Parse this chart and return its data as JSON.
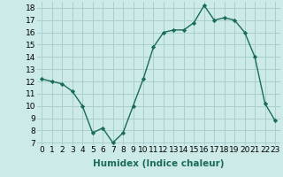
{
  "x": [
    0,
    1,
    2,
    3,
    4,
    5,
    6,
    7,
    8,
    9,
    10,
    11,
    12,
    13,
    14,
    15,
    16,
    17,
    18,
    19,
    20,
    21,
    22,
    23
  ],
  "y": [
    12.2,
    12.0,
    11.8,
    11.2,
    10.0,
    7.8,
    8.2,
    7.0,
    7.8,
    10.0,
    12.2,
    14.8,
    16.0,
    16.2,
    16.2,
    16.8,
    18.2,
    17.0,
    17.2,
    17.0,
    16.0,
    14.0,
    10.2,
    8.8
  ],
  "line_color": "#1a6b5a",
  "marker": "D",
  "marker_size": 2.2,
  "background_color": "#cceae7",
  "grid_color": "#aacfcc",
  "xlabel": "Humidex (Indice chaleur)",
  "xlim": [
    -0.5,
    23.5
  ],
  "ylim": [
    6.8,
    18.5
  ],
  "yticks": [
    7,
    8,
    9,
    10,
    11,
    12,
    13,
    14,
    15,
    16,
    17,
    18
  ],
  "xticks": [
    0,
    1,
    2,
    3,
    4,
    5,
    6,
    7,
    8,
    9,
    10,
    11,
    12,
    13,
    14,
    15,
    16,
    17,
    18,
    19,
    20,
    21,
    22,
    23
  ],
  "xtick_labels": [
    "0",
    "1",
    "2",
    "3",
    "4",
    "5",
    "6",
    "7",
    "8",
    "9",
    "10",
    "11",
    "12",
    "13",
    "14",
    "15",
    "16",
    "17",
    "18",
    "19",
    "20",
    "21",
    "22",
    "23"
  ],
  "tick_fontsize": 6.5,
  "xlabel_fontsize": 7.5,
  "linewidth": 1.0
}
